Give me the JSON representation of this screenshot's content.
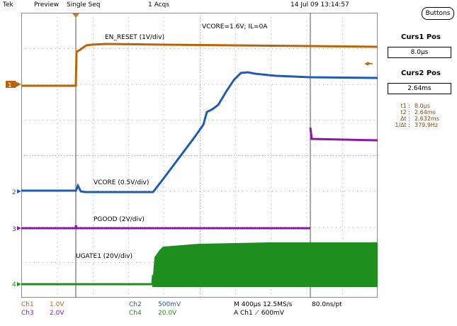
{
  "header": {
    "brand": "Tek",
    "mode": "Preview",
    "acq_mode": "Single Seq",
    "acqs": "1 Acqs",
    "datetime": "14 Jul 09 13:14:57"
  },
  "side_panel": {
    "buttons_label": "Buttons",
    "curs1_title": "Curs1 Pos",
    "curs1_value": "8.0µs",
    "curs2_title": "Curs2 Pos",
    "curs2_value": "2.64ms",
    "readouts": [
      {
        "key": "t1 :",
        "value": "8.0µs"
      },
      {
        "key": "t2 :",
        "value": "2.64ms"
      },
      {
        "key": "Δt :",
        "value": "2.632ms"
      },
      {
        "key": "1/Δt :",
        "value": "379.9Hz"
      }
    ]
  },
  "screen": {
    "annotation": "VCORE=1.6V; IL=0A",
    "trace_labels": {
      "en_reset": "EN_RESET (1V/div)",
      "vcore": "VCORE (0.5V/div)",
      "pgood": "PGOOD (2V/div)",
      "ugate1": "UGATE1 (20V/div)"
    },
    "markers": {
      "ch1": "1",
      "ch2": "2",
      "ch3": "3",
      "ch4": "4"
    }
  },
  "footer": {
    "ch1_name": "Ch1",
    "ch1_scale": "1.0V",
    "ch3_name": "Ch3",
    "ch3_scale": "2.0V",
    "ch2_name": "Ch2",
    "ch2_scale": "500mV",
    "ch4_name": "Ch4",
    "ch4_scale": "20.0V",
    "timebase": "M 400µs 12.5MS/s",
    "sample": "80.0ns/pt",
    "trigger": "A  Ch1  ⟋  600mV"
  },
  "colors": {
    "ch1": "#b8650a",
    "ch2": "#1f5bb5",
    "ch3": "#8b17a8",
    "ch4": "#1e8f1e",
    "cursor": "#555555",
    "grid": "#8c8c8c"
  }
}
